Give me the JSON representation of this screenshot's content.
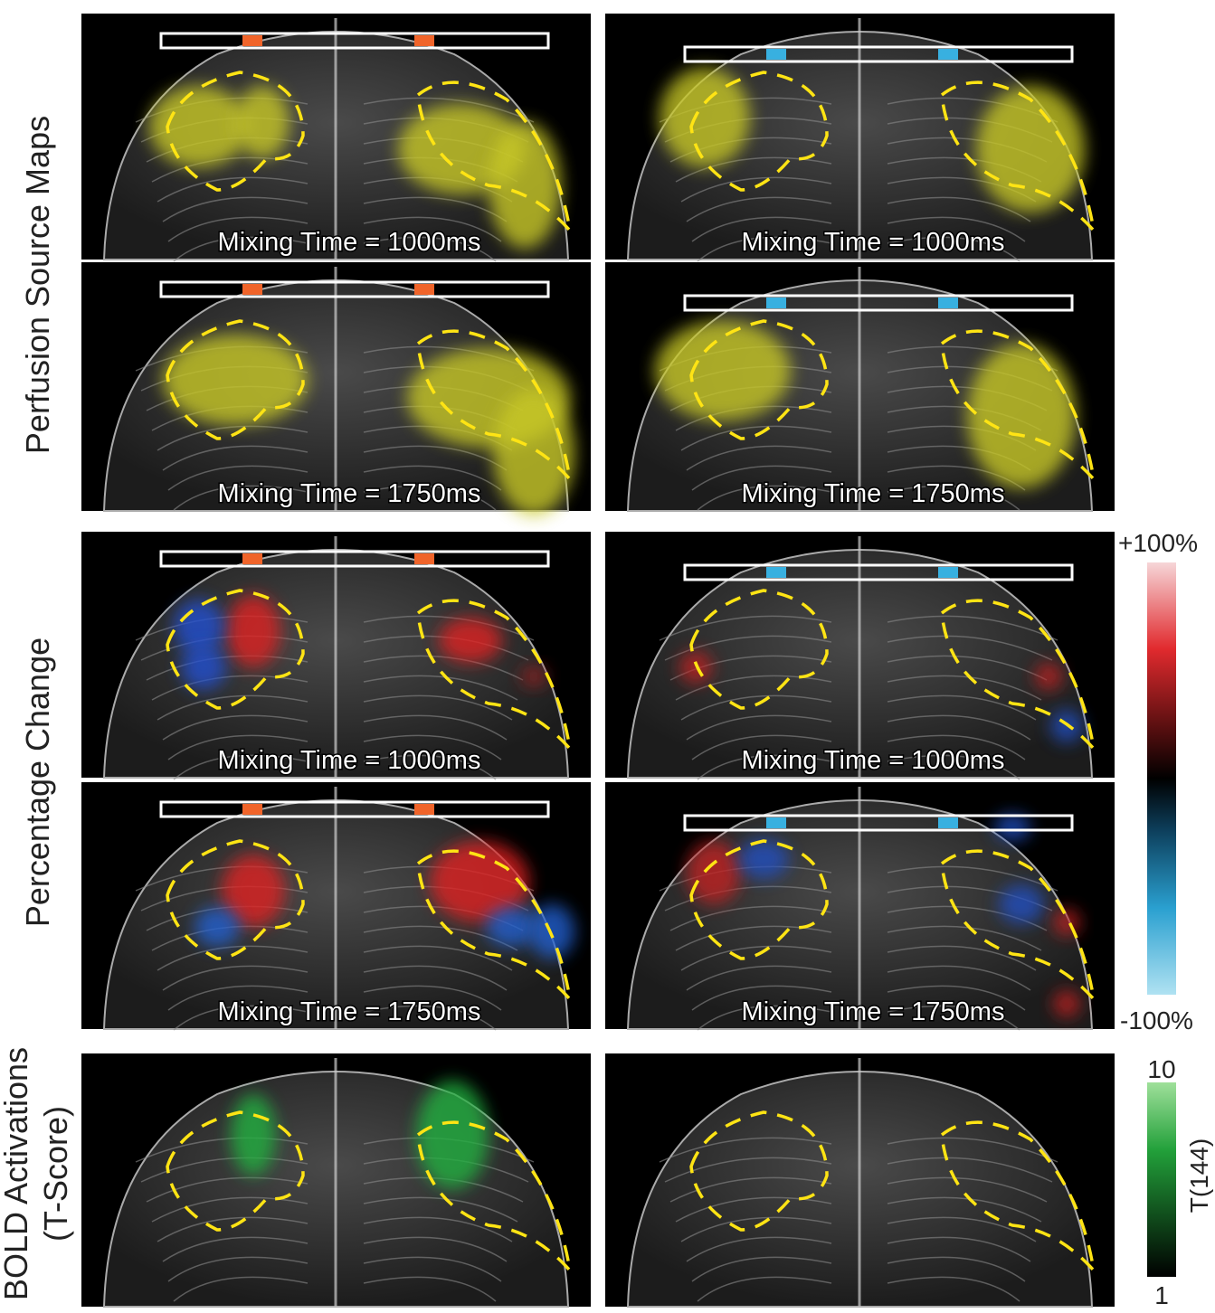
{
  "perfusion_source_maps": {
    "label": "Perfusion Source Maps",
    "captions": [
      [
        "Mixing Time = 1000ms",
        "Mixing Time = 1000ms"
      ],
      [
        "Mixing Time = 1750ms",
        "Mixing Time = 1750ms"
      ]
    ]
  },
  "percentage_change": {
    "label": "Percentage Change",
    "captions": [
      [
        "Mixing Time = 1000ms",
        "Mixing Time = 1000ms"
      ],
      [
        "Mixing Time = 1750ms",
        "Mixing Time = 1750ms"
      ]
    ],
    "colorbar": {
      "top": "+100%",
      "bottom": "-100%"
    }
  },
  "bold_activations": {
    "label_lines": [
      "BOLD Activations",
      "(T-Score)"
    ],
    "colorbar": {
      "top": "10",
      "bottom": "1",
      "axis_label": "T(144)"
    }
  }
}
